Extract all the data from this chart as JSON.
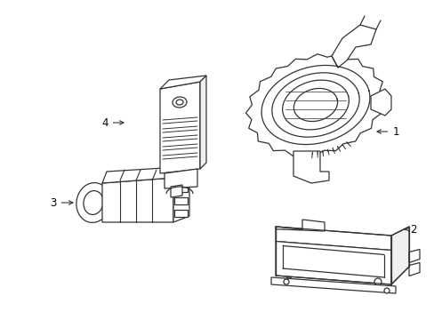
{
  "background_color": "#ffffff",
  "line_color": "#333333",
  "figsize": [
    4.89,
    3.6
  ],
  "dpi": 100
}
